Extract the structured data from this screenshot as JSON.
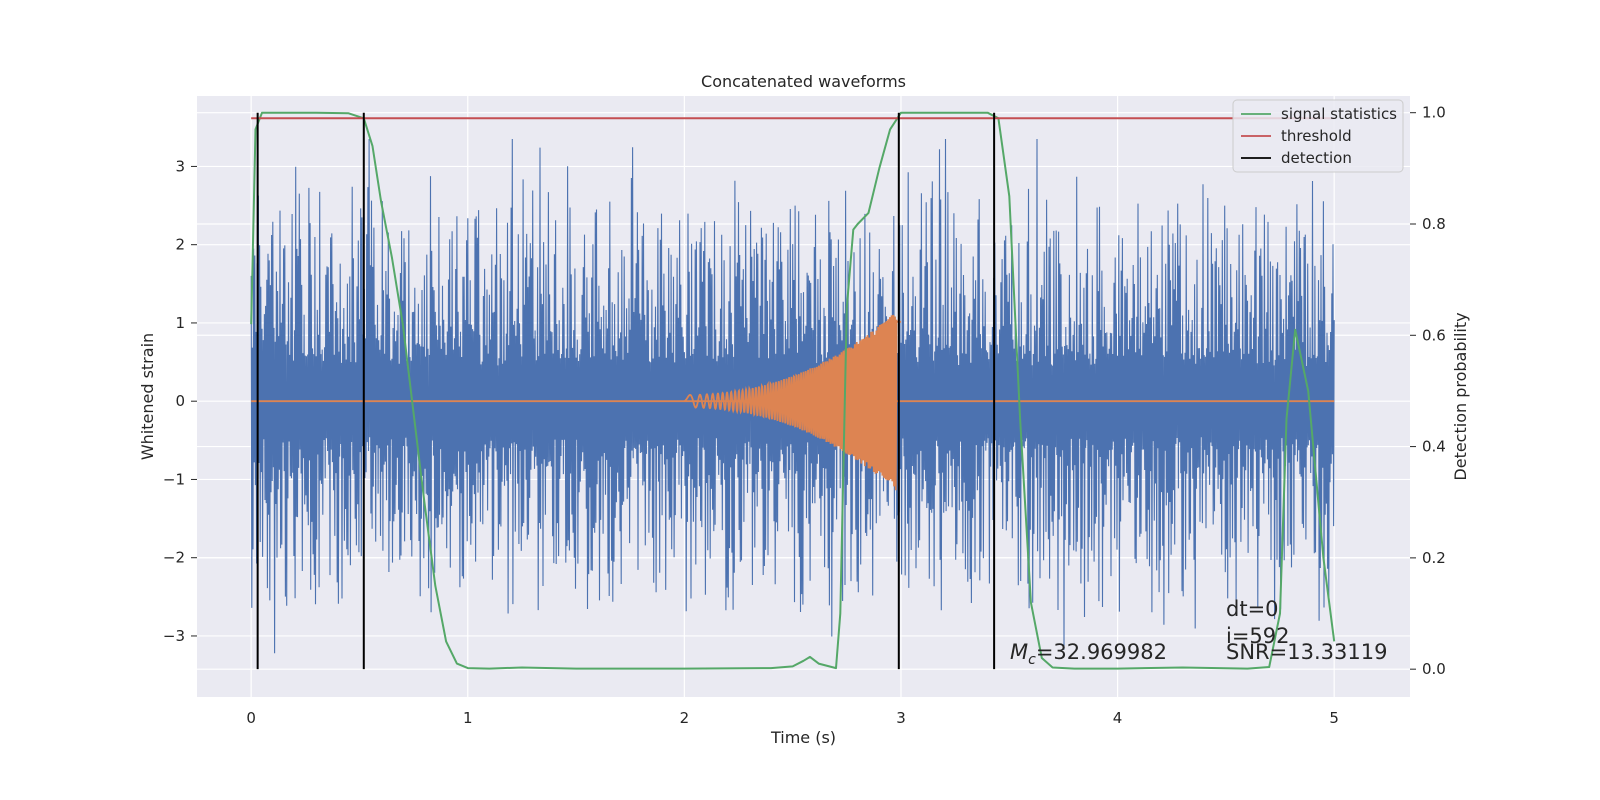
{
  "chart_data": {
    "type": "line",
    "title": "Concatenated waveforms",
    "xlabel": "Time (s)",
    "ylabel": "Whitened strain",
    "y2label": "Detection probability",
    "xlim": [
      -0.25,
      5.35
    ],
    "ylim": [
      -3.78,
      3.9
    ],
    "y2lim": [
      -0.05,
      1.03
    ],
    "xticks": [
      0,
      1,
      2,
      3,
      4,
      5
    ],
    "yticks": [
      -3,
      -2,
      -1,
      0,
      1,
      2,
      3
    ],
    "y2ticks": [
      0.0,
      0.2,
      0.4,
      0.6,
      0.8,
      1.0
    ],
    "xtick_labels": [
      "0",
      "1",
      "2",
      "3",
      "4",
      "5"
    ],
    "ytick_labels": [
      "−3",
      "−2",
      "−1",
      "0",
      "1",
      "2",
      "3"
    ],
    "y2tick_labels": [
      "0.0",
      "0.2",
      "0.4",
      "0.6",
      "0.8",
      "1.0"
    ],
    "grid": true,
    "legend_position": "top-right",
    "series": [
      {
        "name": "signal statistics",
        "color": "#55a868",
        "axis": "right",
        "x": [
          0.0,
          0.02,
          0.05,
          0.1,
          0.2,
          0.3,
          0.45,
          0.52,
          0.56,
          0.6,
          0.65,
          0.7,
          0.75,
          0.8,
          0.85,
          0.9,
          0.95,
          1.0,
          1.1,
          1.25,
          1.5,
          2.0,
          2.4,
          2.5,
          2.55,
          2.58,
          2.62,
          2.7,
          2.72,
          2.75,
          2.78,
          2.8,
          2.85,
          2.9,
          2.95,
          3.0,
          3.2,
          3.4,
          3.45,
          3.5,
          3.55,
          3.6,
          3.65,
          3.7,
          3.8,
          4.0,
          4.3,
          4.6,
          4.7,
          4.75,
          4.78,
          4.82,
          4.88,
          4.95,
          5.0
        ],
        "y": [
          0.62,
          0.97,
          1.0,
          1.0,
          1.0,
          1.0,
          0.999,
          0.99,
          0.94,
          0.84,
          0.74,
          0.62,
          0.46,
          0.3,
          0.15,
          0.05,
          0.01,
          0.002,
          0.001,
          0.003,
          0.001,
          0.001,
          0.002,
          0.005,
          0.015,
          0.022,
          0.01,
          0.002,
          0.1,
          0.65,
          0.79,
          0.8,
          0.82,
          0.9,
          0.97,
          1.0,
          1.0,
          1.0,
          0.99,
          0.85,
          0.45,
          0.12,
          0.02,
          0.003,
          0.001,
          0.001,
          0.003,
          0.001,
          0.004,
          0.1,
          0.45,
          0.61,
          0.5,
          0.2,
          0.05
        ]
      },
      {
        "name": "threshold",
        "color": "#c44e52",
        "axis": "right",
        "x": [
          0.0,
          5.0
        ],
        "y": [
          0.99,
          0.99
        ]
      },
      {
        "name": "detection",
        "color": "#000000",
        "axis": "right",
        "x": [
          0.03,
          0.52,
          2.99,
          3.43
        ],
        "y_range": [
          0.0,
          1.0
        ]
      }
    ],
    "strain_noise": {
      "color": "#4c72b0",
      "x_range": [
        0.0,
        5.0
      ],
      "typical_range": [
        -2.0,
        2.0
      ],
      "peak_range": [
        -3.45,
        3.35
      ]
    },
    "injected_signal": {
      "color": "#dd8452",
      "zero_line": [
        0.0,
        5.0
      ],
      "chirp_x_range": [
        2.0,
        3.0
      ],
      "amplitude_start": 0.08,
      "amplitude_end": 1.2
    }
  },
  "annotations": {
    "mc_symbol": "M",
    "mc_subscript": "c",
    "mc_value": "=32.969982",
    "dt": "dt=0",
    "i": "i=592",
    "snr": "SNR=13.33119"
  }
}
